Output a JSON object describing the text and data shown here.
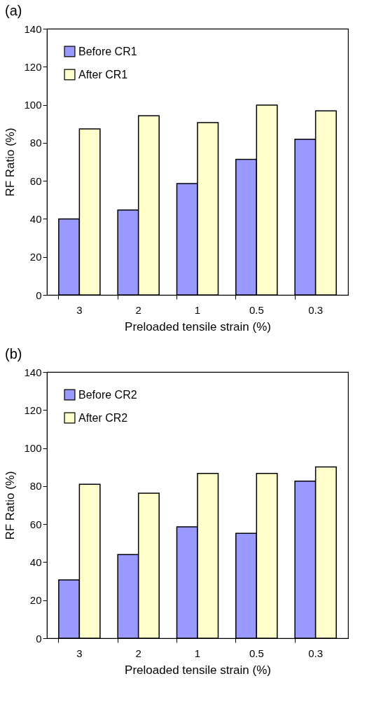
{
  "chart_data": [
    {
      "type": "bar",
      "title": "(a)",
      "xlabel": "Preloaded tensile strain (%)",
      "ylabel": "RF Ratio (%)",
      "categories": [
        "3",
        "2",
        "1",
        "0.5",
        "0.3"
      ],
      "series": [
        {
          "name": "Before CR1",
          "color": "#9999ff",
          "values": [
            40,
            44.7,
            58.6,
            71.3,
            81.9
          ]
        },
        {
          "name": "After CR1",
          "color": "#ffffcc",
          "values": [
            87.3,
            94.2,
            90.6,
            99.8,
            96.8
          ]
        }
      ],
      "ylim": [
        0,
        140
      ],
      "yticks": [
        0,
        20,
        40,
        60,
        80,
        100,
        120,
        140
      ],
      "legend": "top left",
      "grid": false
    },
    {
      "type": "bar",
      "title": "(b)",
      "xlabel": "Preloaded tensile strain (%)",
      "ylabel": "RF Ratio (%)",
      "categories": [
        "3",
        "2",
        "1",
        "0.5",
        "0.3"
      ],
      "series": [
        {
          "name": "Before CR2",
          "color": "#9999ff",
          "values": [
            30.7,
            44,
            58.6,
            55.2,
            82.6
          ]
        },
        {
          "name": "After CR2",
          "color": "#ffffcc",
          "values": [
            81,
            76.3,
            86.7,
            86.7,
            90.1
          ]
        }
      ],
      "ylim": [
        0,
        140
      ],
      "yticks": [
        0,
        20,
        40,
        60,
        80,
        100,
        120,
        140
      ],
      "legend": "top left",
      "grid": false
    }
  ]
}
